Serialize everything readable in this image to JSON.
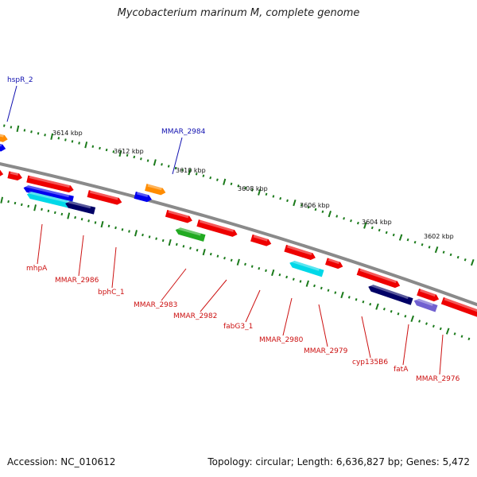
{
  "title": "Mycobacterium marinum M, complete genome",
  "footer": {
    "accession": "Accession: NC_010612",
    "summary": "Topology: circular; Length: 6,636,827 bp; Genes: 5,472"
  },
  "colors": {
    "backbone": "#8a8a8a",
    "tick_green": "#1a7a1a",
    "label_forward": "#1010b0",
    "label_reverse": "#cc1010"
  },
  "scale_labels": [
    "3614 kbp",
    "3612 kbp",
    "3610 kbp",
    "3608 kbp",
    "3606 kbp",
    "3604 kbp",
    "3602 kbp"
  ],
  "genes_forward": [
    {
      "name": "hspR_2",
      "color": "#ff8c00"
    },
    {
      "name": "MMAR_2984",
      "color": "#ff8c00"
    }
  ],
  "genes_reverse": [
    {
      "name": "mhpA",
      "color": "#0000ee"
    },
    {
      "name": "MMAR_2986",
      "color": "#000066"
    },
    {
      "name": "bphC_1",
      "color": "#ee0000"
    },
    {
      "name": "MMAR_2983",
      "color": "#ee0000"
    },
    {
      "name": "MMAR_2982",
      "color": "#22aa22"
    },
    {
      "name": "fabG3_1",
      "color": "#ee0000"
    },
    {
      "name": "MMAR_2980",
      "color": "#00d8e8"
    },
    {
      "name": "MMAR_2979",
      "color": "#ee0000"
    },
    {
      "name": "cyp135B6",
      "color": "#000066"
    },
    {
      "name": "fatA",
      "color": "#7060d0"
    },
    {
      "name": "MMAR_2976",
      "color": "#ee0000"
    }
  ]
}
